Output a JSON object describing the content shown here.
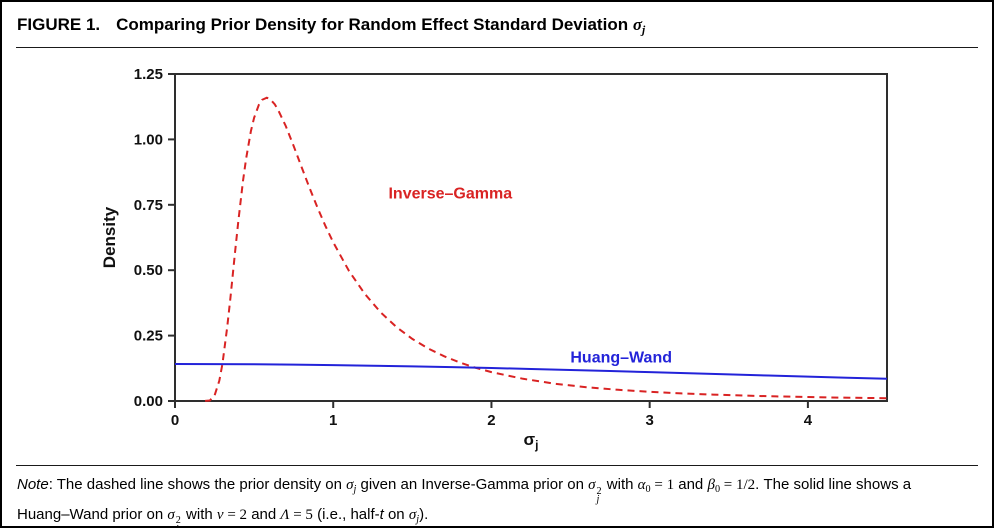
{
  "page": {
    "background": "#ffffff",
    "border_color": "#000000"
  },
  "header": {
    "figure_label": "FIGURE 1.",
    "title_segments": [
      {
        "t": "Comparing Prior Density for Random Effect Standard Deviation "
      },
      {
        "t": "σ",
        "s": "mi"
      },
      {
        "t": "j",
        "s": "msub"
      }
    ]
  },
  "note": {
    "line1_segments": [
      {
        "t": "Note",
        "s": "i"
      },
      {
        "t": ": The dashed line shows the prior density on "
      },
      {
        "t": "σ",
        "s": "mi"
      },
      {
        "t": "j",
        "s": "msub"
      },
      {
        "t": " given an Inverse-Gamma prior on "
      },
      {
        "t": "σ",
        "s": "mi"
      },
      {
        "sup": "2",
        "sub": "j"
      },
      {
        "t": " with "
      },
      {
        "t": "α",
        "s": "mi"
      },
      {
        "t": "0",
        "s": "msubr"
      },
      {
        "t": " = 1",
        "s": "mr"
      },
      {
        "t": " and "
      },
      {
        "t": "β",
        "s": "mi"
      },
      {
        "t": "0",
        "s": "msubr"
      },
      {
        "t": " = 1/2",
        "s": "mr"
      },
      {
        "t": ". The solid line shows a"
      }
    ],
    "line2_segments": [
      {
        "t": "Huang–Wand prior on "
      },
      {
        "t": "σ",
        "s": "mi"
      },
      {
        "sup": "2",
        "sub": "j"
      },
      {
        "t": " with "
      },
      {
        "t": "ν",
        "s": "mi"
      },
      {
        "t": " = 2",
        "s": "mr"
      },
      {
        "t": " and "
      },
      {
        "t": "Λ",
        "s": "mi"
      },
      {
        "t": " = 5",
        "s": "mr"
      },
      {
        "t": " (i.e., half-"
      },
      {
        "t": "t",
        "s": "i"
      },
      {
        "t": " on "
      },
      {
        "t": "σ",
        "s": "mi"
      },
      {
        "t": "j",
        "s": "msub"
      },
      {
        "t": ")."
      }
    ]
  },
  "chart_data": {
    "type": "line",
    "title": "",
    "ylabel": "Density",
    "xlabel": {
      "main": "σ",
      "sub": "j"
    },
    "xlim": [
      0,
      4.5
    ],
    "ylim": [
      0,
      1.25
    ],
    "grid": false,
    "frame_color": "#2e2e2e",
    "x_tick_values": [
      0,
      1,
      2,
      3,
      4
    ],
    "x_tick_labels": [
      "0",
      "1",
      "2",
      "3",
      "4"
    ],
    "y_tick_values": [
      0,
      0.25,
      0.5,
      0.75,
      1.0,
      1.25
    ],
    "y_tick_labels": [
      "0.00",
      "0.25",
      "0.50",
      "0.75",
      "1.00",
      "1.25"
    ],
    "legend_position": "inline-annotations",
    "series": [
      {
        "name": "Inverse-Gamma",
        "color": "#d92323",
        "style": "dashed",
        "points": [
          [
            0.19,
            0.0002
          ],
          [
            0.22,
            0.0021
          ],
          [
            0.25,
            0.0215
          ],
          [
            0.28,
            0.0774
          ],
          [
            0.3,
            0.1432
          ],
          [
            0.33,
            0.282
          ],
          [
            0.35,
            0.3933
          ],
          [
            0.38,
            0.5706
          ],
          [
            0.4,
            0.6865
          ],
          [
            0.43,
            0.8415
          ],
          [
            0.45,
            0.9287
          ],
          [
            0.48,
            1.0317
          ],
          [
            0.5,
            1.0827
          ],
          [
            0.53,
            1.1325
          ],
          [
            0.55,
            1.1511
          ],
          [
            0.58,
            1.1594
          ],
          [
            0.6,
            1.1545
          ],
          [
            0.63,
            1.1346
          ],
          [
            0.65,
            1.1151
          ],
          [
            0.7,
            1.0509
          ],
          [
            0.75,
            0.9745
          ],
          [
            0.8,
            0.8942
          ],
          [
            0.85,
            0.8151
          ],
          [
            0.9,
            0.7399
          ],
          [
            0.95,
            0.6702
          ],
          [
            1.0,
            0.6065
          ],
          [
            1.1,
            0.497
          ],
          [
            1.2,
            0.409
          ],
          [
            1.3,
            0.3386
          ],
          [
            1.4,
            0.2824
          ],
          [
            1.5,
            0.2373
          ],
          [
            1.6,
            0.2008
          ],
          [
            1.7,
            0.1712
          ],
          [
            1.8,
            0.147
          ],
          [
            1.9,
            0.1269
          ],
          [
            2.0,
            0.1103
          ],
          [
            2.2,
            0.0847
          ],
          [
            2.4,
            0.0663
          ],
          [
            2.6,
            0.0528
          ],
          [
            2.8,
            0.0427
          ],
          [
            3.0,
            0.035
          ],
          [
            3.2,
            0.0291
          ],
          [
            3.4,
            0.0244
          ],
          [
            3.6,
            0.0206
          ],
          [
            3.8,
            0.0176
          ],
          [
            4.0,
            0.0151
          ],
          [
            4.2,
            0.0131
          ],
          [
            4.4,
            0.0114
          ],
          [
            4.5,
            0.0107
          ]
        ]
      },
      {
        "name": "Huang-Wand",
        "color": "#2323d9",
        "style": "solid",
        "points": [
          [
            0.0,
            0.1414
          ],
          [
            0.25,
            0.1412
          ],
          [
            0.5,
            0.1404
          ],
          [
            0.75,
            0.1391
          ],
          [
            1.0,
            0.1373
          ],
          [
            1.25,
            0.135
          ],
          [
            1.5,
            0.1324
          ],
          [
            1.75,
            0.1294
          ],
          [
            2.0,
            0.126
          ],
          [
            2.25,
            0.1224
          ],
          [
            2.5,
            0.1185
          ],
          [
            2.75,
            0.1145
          ],
          [
            3.0,
            0.1103
          ],
          [
            3.25,
            0.1061
          ],
          [
            3.5,
            0.1018
          ],
          [
            3.75,
            0.0975
          ],
          [
            4.0,
            0.0932
          ],
          [
            4.25,
            0.089
          ],
          [
            4.5,
            0.0849
          ]
        ]
      }
    ],
    "annotations": [
      {
        "label": "Inverse–Gamma",
        "color": "#d92323",
        "x": 1.74,
        "y": 0.775
      },
      {
        "label": "Huang–Wand",
        "color": "#2323d9",
        "x": 2.82,
        "y": 0.148
      }
    ]
  }
}
